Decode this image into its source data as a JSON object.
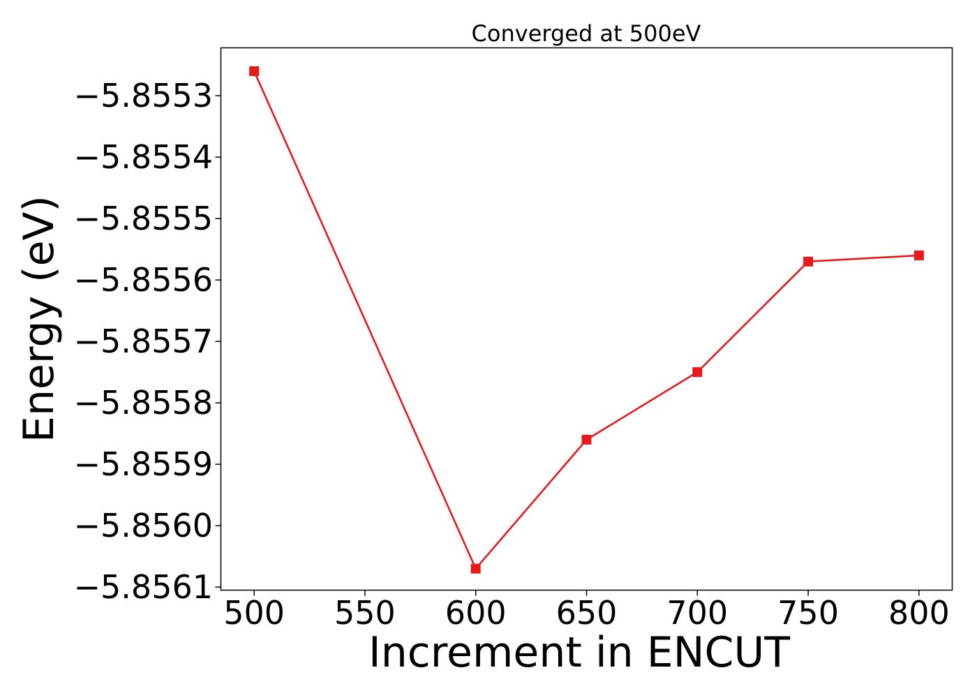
{
  "chart_data": {
    "type": "line",
    "title": "Converged at 500eV",
    "xlabel": "Increment in ENCUT",
    "ylabel": "Energy (eV)",
    "x": [
      500,
      600,
      650,
      700,
      750,
      800
    ],
    "series": [
      {
        "values": [
          -5.85526,
          -5.85607,
          -5.85586,
          -5.85575,
          -5.85557,
          -5.85556
        ],
        "color": "#e8191c",
        "marker": "square"
      }
    ],
    "xlim": [
      485,
      815
    ],
    "ylim": [
      -5.856105,
      -5.855222
    ],
    "xticks": [
      500,
      550,
      600,
      650,
      700,
      750,
      800
    ],
    "xtick_labels": [
      "500",
      "550",
      "600",
      "650",
      "700",
      "750",
      "800"
    ],
    "yticks": [
      -5.8553,
      -5.8554,
      -5.8555,
      -5.8556,
      -5.8557,
      -5.8558,
      -5.8559,
      -5.856,
      -5.8561
    ],
    "ytick_labels": [
      "−5.8553",
      "−5.8554",
      "−5.8555",
      "−5.8556",
      "−5.8557",
      "−5.8558",
      "−5.8559",
      "−5.8560",
      "−5.8561"
    ],
    "grid": false,
    "legend": false
  }
}
